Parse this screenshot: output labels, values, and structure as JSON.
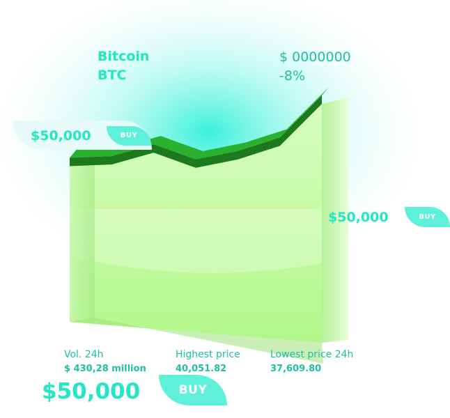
{
  "coin": {
    "name": "Bitcoin",
    "ticker": "BTC"
  },
  "price": {
    "value": "$ 0000000",
    "change": "-8%"
  },
  "offers": [
    {
      "price": "$50,000",
      "button": "BUY"
    },
    {
      "price": "$50,000",
      "button": "BUY"
    },
    {
      "price": "$50,000",
      "button": "BUY"
    }
  ],
  "stats": [
    {
      "label": "Vol. 24h",
      "value": "$ 430,28 million"
    },
    {
      "label": "Highest price",
      "value": "40,051.82"
    },
    {
      "label": "Lowest price 24h",
      "value": "37,609.80"
    }
  ],
  "colors": {
    "accent": "#22e6c4",
    "button": "#5ff0d9",
    "area": "#c8fba0",
    "line": "#1c7a1c",
    "line_top": "#29b12f"
  },
  "chart_data": {
    "type": "area",
    "title": "",
    "xlabel": "",
    "ylabel": "",
    "x": [
      1,
      2,
      3,
      4,
      5,
      6,
      7
    ],
    "series": [
      {
        "values": [
          18,
          19,
          26,
          17,
          22,
          30,
          55
        ]
      }
    ],
    "xlim": [
      1,
      7
    ],
    "ylim": [
      0,
      60
    ],
    "grid": false,
    "legend": "none"
  }
}
